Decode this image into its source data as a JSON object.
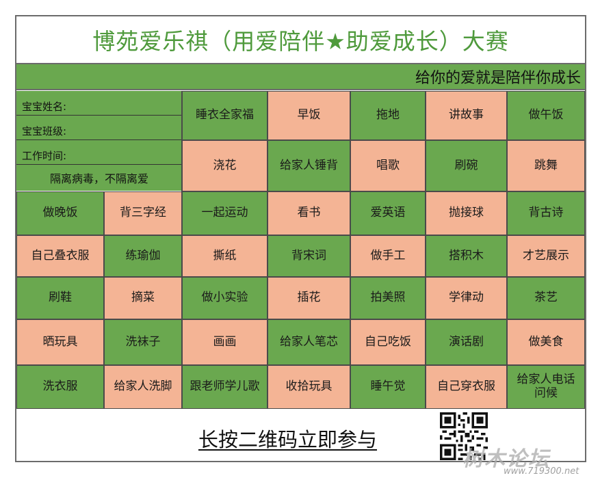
{
  "poster": {
    "title": "博苑爱乐祺（用爱陪伴★助爱成长）大赛",
    "subtitle": "给你的爱就是陪伴你成长",
    "info": {
      "name_label": "宝宝姓名:",
      "class_label": "宝宝班级:",
      "work_time_label": "工作时间:",
      "slogan": "隔离病毒，不隔离爱"
    },
    "grid": [
      [
        "睡衣全家福",
        "早饭",
        "拖地",
        "讲故事",
        "做午饭"
      ],
      [
        "浇花",
        "给家人锤背",
        "唱歌",
        "刷碗",
        "跳舞"
      ],
      [
        "做晚饭",
        "背三字经",
        "一起运动",
        "看书",
        "爱英语",
        "抛接球",
        "背古诗"
      ],
      [
        "自己叠衣服",
        "练瑜伽",
        "撕纸",
        "背宋词",
        "做手工",
        "搭积木",
        "才艺展示"
      ],
      [
        "刷鞋",
        "摘菜",
        "做小实验",
        "插花",
        "拍美照",
        "学律动",
        "茶艺"
      ],
      [
        "晒玩具",
        "洗袜子",
        "画画",
        "给家人笔芯",
        "自己吃饭",
        "演话剧",
        "做美食"
      ],
      [
        "洗衣服",
        "给家人洗脚",
        "跟老师学儿歌",
        "收拾玩具",
        "睡午觉",
        "自己穿衣服",
        "给家人电话问候"
      ]
    ],
    "colors": {
      "green": "#6aa84f",
      "peach": "#f4b495",
      "title_green": "#4f9a3c"
    },
    "footer_text": "长按二维码立即参与",
    "qr_icon": "qr-code-icon",
    "watermark": "树木论坛",
    "watermark_url": "www.719300.net"
  }
}
